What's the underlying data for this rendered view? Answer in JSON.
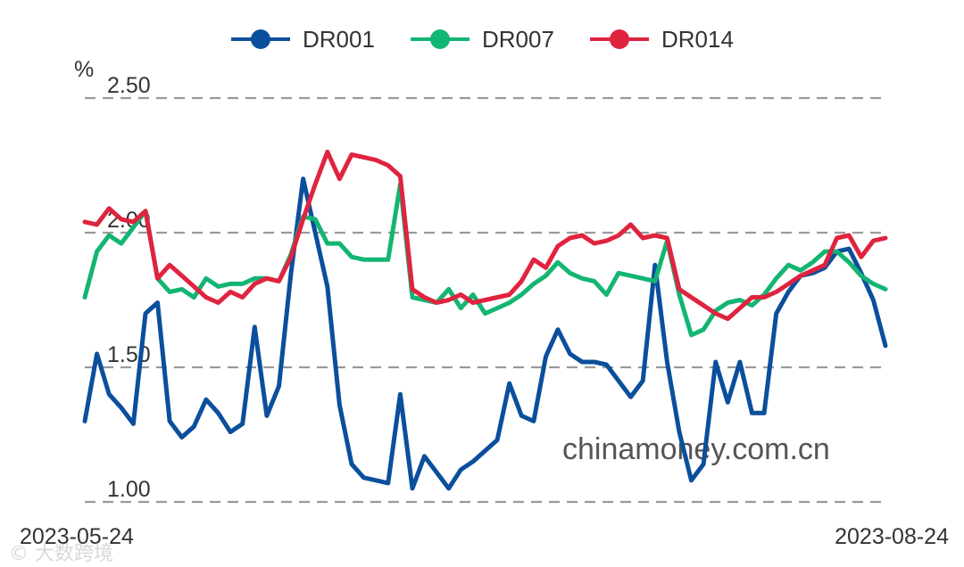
{
  "chart_data": {
    "type": "line",
    "y_unit": "%",
    "ylim": [
      1.0,
      2.5
    ],
    "y_ticks": [
      "2.50",
      "2.00",
      "1.50",
      "1.00"
    ],
    "y_tick_values": [
      2.5,
      2.0,
      1.5,
      1.0
    ],
    "grid": "horizontal-dashed",
    "legend_position": "top-center",
    "x_start_label": "2023-05-24",
    "x_end_label": "2023-08-24",
    "watermark": "chinamoney.com.cn",
    "corner_watermark": "© 大数跨境",
    "series": [
      {
        "name": "DR001",
        "color": "#0b4f9c",
        "values": [
          1.3,
          1.55,
          1.4,
          1.35,
          1.29,
          1.7,
          1.74,
          1.3,
          1.24,
          1.28,
          1.38,
          1.33,
          1.26,
          1.29,
          1.65,
          1.32,
          1.43,
          1.85,
          2.2,
          2.0,
          1.8,
          1.36,
          1.14,
          1.09,
          1.08,
          1.07,
          1.4,
          1.05,
          1.17,
          1.11,
          1.05,
          1.12,
          1.15,
          1.19,
          1.23,
          1.44,
          1.32,
          1.3,
          1.54,
          1.64,
          1.55,
          1.52,
          1.52,
          1.51,
          1.45,
          1.39,
          1.45,
          1.88,
          1.52,
          1.26,
          1.08,
          1.14,
          1.52,
          1.37,
          1.52,
          1.33,
          1.33,
          1.7,
          1.78,
          1.84,
          1.85,
          1.87,
          1.93,
          1.94,
          1.85,
          1.75,
          1.58
        ]
      },
      {
        "name": "DR007",
        "color": "#13b572",
        "values": [
          1.76,
          1.93,
          1.99,
          1.96,
          2.02,
          2.08,
          1.83,
          1.78,
          1.79,
          1.76,
          1.83,
          1.8,
          1.81,
          1.81,
          1.83,
          1.83,
          1.82,
          1.92,
          2.06,
          2.05,
          1.96,
          1.96,
          1.91,
          1.9,
          1.9,
          1.9,
          2.18,
          1.76,
          1.75,
          1.74,
          1.79,
          1.72,
          1.77,
          1.7,
          1.72,
          1.74,
          1.77,
          1.81,
          1.84,
          1.89,
          1.85,
          1.83,
          1.82,
          1.77,
          1.85,
          1.84,
          1.83,
          1.82,
          1.97,
          1.77,
          1.62,
          1.64,
          1.71,
          1.74,
          1.75,
          1.73,
          1.77,
          1.83,
          1.88,
          1.86,
          1.89,
          1.93,
          1.93,
          1.89,
          1.84,
          1.81,
          1.79
        ]
      },
      {
        "name": "DR014",
        "color": "#e0233f",
        "values": [
          2.04,
          2.03,
          2.09,
          2.05,
          2.04,
          2.08,
          1.83,
          1.88,
          1.84,
          1.8,
          1.76,
          1.74,
          1.78,
          1.76,
          1.81,
          1.83,
          1.82,
          1.91,
          2.05,
          2.18,
          2.3,
          2.2,
          2.29,
          2.28,
          2.27,
          2.25,
          2.21,
          1.79,
          1.76,
          1.74,
          1.75,
          1.77,
          1.74,
          1.75,
          1.76,
          1.77,
          1.82,
          1.9,
          1.87,
          1.95,
          1.98,
          1.99,
          1.96,
          1.97,
          1.99,
          2.03,
          1.98,
          1.99,
          1.98,
          1.79,
          1.76,
          1.73,
          1.7,
          1.68,
          1.72,
          1.76,
          1.76,
          1.78,
          1.81,
          1.84,
          1.86,
          1.88,
          1.98,
          1.99,
          1.91,
          1.97,
          1.98
        ]
      }
    ]
  }
}
